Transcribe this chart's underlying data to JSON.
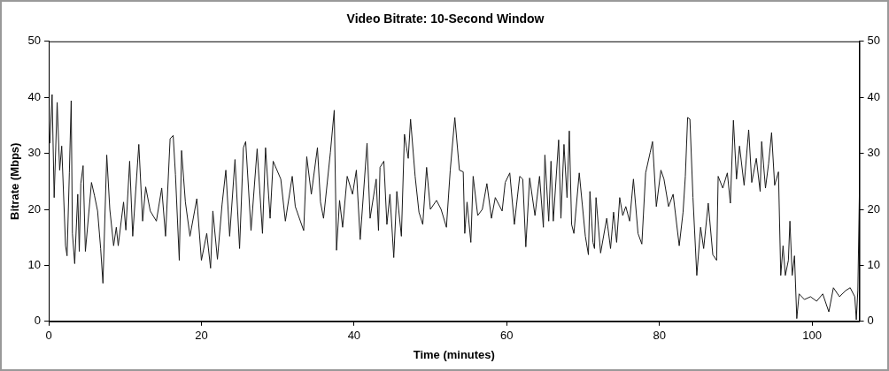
{
  "chart_data": {
    "type": "line",
    "title": "Video Bitrate: 10-Second Window",
    "xlabel": "Time (minutes)",
    "ylabel": "Bitrate (Mbps)",
    "xlim": [
      0,
      106.2
    ],
    "xticks": [
      0,
      20,
      40,
      60,
      80,
      100
    ],
    "ylim": [
      0,
      50
    ],
    "yticks": [
      0,
      10,
      20,
      30,
      40,
      50
    ],
    "y2lim": [
      0,
      50
    ],
    "y2ticks": [
      0,
      10,
      20,
      30,
      40,
      50
    ],
    "grid": false,
    "legend": false,
    "marker": "none",
    "line_style": "solid",
    "series": [
      {
        "color": "#1a1a1a",
        "x": [
          0.15,
          0.44,
          0.71,
          1.1,
          1.43,
          1.7,
          2.2,
          2.4,
          2.7,
          2.94,
          3.1,
          3.4,
          3.8,
          4.0,
          4.2,
          4.5,
          4.8,
          5.6,
          6.0,
          6.4,
          6.8,
          7.1,
          7.6,
          8.0,
          8.5,
          8.85,
          9.1,
          9.8,
          10.1,
          10.6,
          11.0,
          11.8,
          12.3,
          12.7,
          13.3,
          14.1,
          14.8,
          15.3,
          15.9,
          16.3,
          16.6,
          17.1,
          17.4,
          17.9,
          18.5,
          19.4,
          20.0,
          20.7,
          21.2,
          21.5,
          22.1,
          22.7,
          23.2,
          23.7,
          24.4,
          25.0,
          25.5,
          25.8,
          26.5,
          27.3,
          28.0,
          28.4,
          29.0,
          29.4,
          30.4,
          31.0,
          31.9,
          32.3,
          33.4,
          33.8,
          34.4,
          35.2,
          35.6,
          36.0,
          36.9,
          37.4,
          37.7,
          38.1,
          38.5,
          39.1,
          39.8,
          40.3,
          40.8,
          41.7,
          42.1,
          42.9,
          43.2,
          43.4,
          43.9,
          44.3,
          44.7,
          45.2,
          45.6,
          46.2,
          46.6,
          47.1,
          47.4,
          48.0,
          48.5,
          49.0,
          49.5,
          50.0,
          50.8,
          51.4,
          52.1,
          52.6,
          53.2,
          53.8,
          54.3,
          54.5,
          54.8,
          55.3,
          55.6,
          56.2,
          56.8,
          57.4,
          58.0,
          58.5,
          59.4,
          59.8,
          60.4,
          61.0,
          61.7,
          62.1,
          62.5,
          63.0,
          63.7,
          64.3,
          64.8,
          65.0,
          65.5,
          65.8,
          66.1,
          66.8,
          67.1,
          67.5,
          67.9,
          68.2,
          68.5,
          68.8,
          69.5,
          70.3,
          70.7,
          70.9,
          71.3,
          71.5,
          71.7,
          72.3,
          73.1,
          73.6,
          74.0,
          74.4,
          74.8,
          75.2,
          75.6,
          76.1,
          76.6,
          77.2,
          77.7,
          78.2,
          78.8,
          79.1,
          79.6,
          80.2,
          80.6,
          81.2,
          81.8,
          82.6,
          83.1,
          83.4,
          83.7,
          84.0,
          84.4,
          84.9,
          85.4,
          85.8,
          86.4,
          87.0,
          87.5,
          87.7,
          88.3,
          88.9,
          89.3,
          89.7,
          90.1,
          90.5,
          91.1,
          91.7,
          92.1,
          92.7,
          93.2,
          93.4,
          93.9,
          94.3,
          94.7,
          95.1,
          95.6,
          95.9,
          96.2,
          96.5,
          96.9,
          97.1,
          97.4,
          97.7,
          98.0,
          98.3,
          99.0,
          99.8,
          100.6,
          101.4,
          102.2,
          102.8,
          103.6,
          104.4,
          105.0,
          105.6,
          105.8,
          106.0,
          106.2
        ],
        "values": [
          31.8,
          40.5,
          22.1,
          39.1,
          27,
          31.3,
          13.5,
          11.7,
          26.5,
          39.4,
          15.7,
          10.3,
          22.7,
          12.5,
          24.6,
          27.8,
          12.5,
          24.8,
          22.4,
          19.7,
          13,
          6.8,
          29.7,
          20,
          13.5,
          16.8,
          13.5,
          21.3,
          16.3,
          28.6,
          15.2,
          31.6,
          17.9,
          24,
          19.7,
          17.9,
          23.8,
          15.2,
          32.6,
          33.2,
          26.2,
          10.9,
          30.5,
          21.3,
          15.2,
          21.9,
          10.9,
          15.7,
          9.5,
          19.7,
          11.1,
          20.8,
          27,
          15.2,
          28.9,
          13,
          31,
          32.1,
          16.2,
          30.8,
          15.7,
          31,
          18.4,
          28.6,
          25.4,
          17.9,
          25.9,
          20.5,
          16.2,
          29.4,
          22.7,
          31,
          21.3,
          18.4,
          30.2,
          37.7,
          12.7,
          21.6,
          16.8,
          25.9,
          22.7,
          27,
          14.6,
          31.8,
          18.4,
          25.4,
          16.2,
          27.5,
          28.6,
          17.3,
          22.7,
          11.4,
          23.2,
          15.2,
          33.4,
          29.1,
          36.1,
          25.9,
          19.5,
          17.3,
          27.5,
          20,
          21.6,
          20,
          16.8,
          27,
          36.4,
          27,
          26.7,
          15.7,
          21.3,
          14.1,
          25.9,
          18.9,
          20,
          24.6,
          18.4,
          22.1,
          19.7,
          24.8,
          26.5,
          17.3,
          25.9,
          25.4,
          13.3,
          25.6,
          18.9,
          25.9,
          16.8,
          29.7,
          17.9,
          28.6,
          17.9,
          32.4,
          18.4,
          31.6,
          22.1,
          34,
          17.3,
          15.7,
          26.5,
          15.2,
          11.9,
          23.2,
          14.1,
          13,
          22.1,
          12.2,
          18.4,
          13,
          19.5,
          14.1,
          22.1,
          18.9,
          20.5,
          17.9,
          25.4,
          15.7,
          13.8,
          26.5,
          30.2,
          32.1,
          20.5,
          27,
          25.4,
          20.5,
          22.7,
          13.5,
          19.5,
          25.9,
          36.4,
          36.1,
          22.1,
          8.2,
          16.8,
          13,
          21.1,
          11.9,
          10.9,
          25.9,
          23.8,
          26.5,
          21.1,
          35.9,
          25.4,
          31.3,
          24.3,
          34.2,
          24.8,
          29.1,
          23.2,
          32.1,
          23.8,
          28.1,
          33.7,
          24.3,
          26.7,
          8.2,
          13.5,
          8.2,
          10.9,
          17.9,
          8.2,
          11.7,
          0.5,
          4.9,
          3.9,
          4.4,
          3.6,
          4.9,
          1.7,
          6,
          4.4,
          5.5,
          6,
          4.4,
          0.3,
          5.5,
          22.7
        ]
      }
    ]
  }
}
